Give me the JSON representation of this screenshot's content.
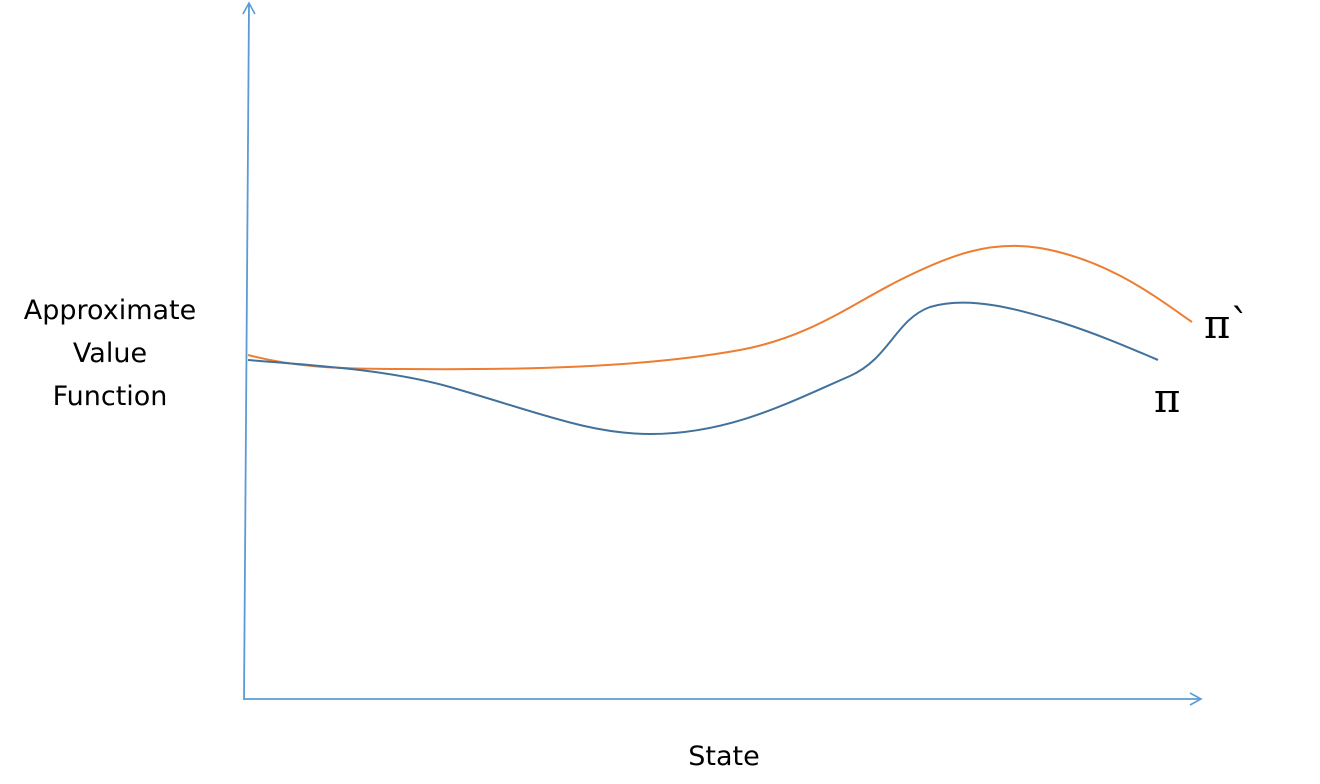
{
  "y_axis_label": [
    "Approximate",
    "Value",
    "Function"
  ],
  "x_axis_label": "State",
  "curves": [
    {
      "label": "π`"
    },
    {
      "label": "π"
    }
  ]
}
